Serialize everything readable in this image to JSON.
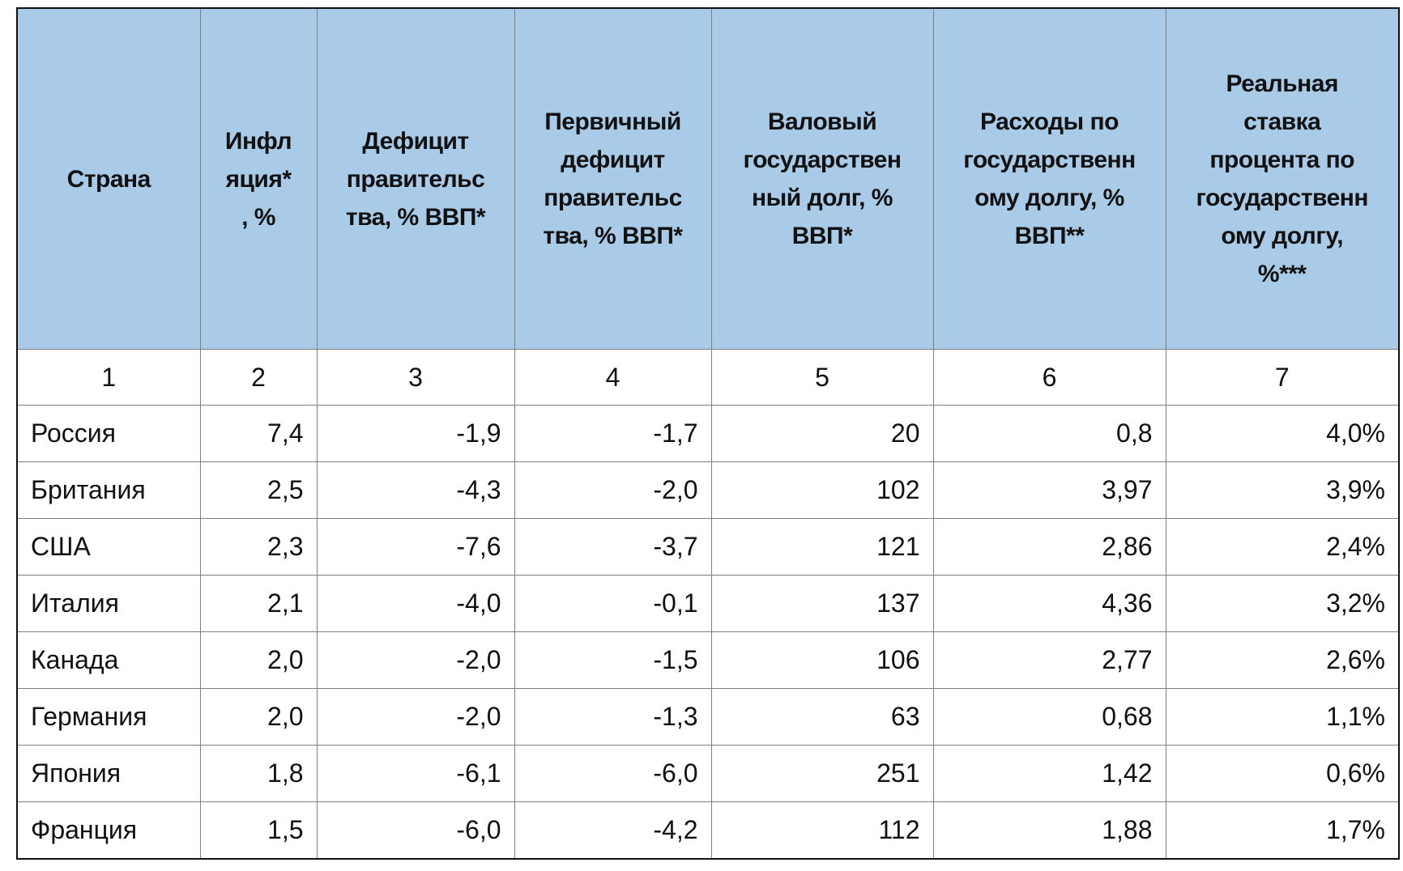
{
  "table": {
    "headers": [
      "Страна",
      "Инфл\nяция*\n, %",
      "Дефицит\nправительс\nтва, % ВВП*",
      "Первичный\nдефицит\nправительс\nтва, % ВВП*",
      "Валовый\nгосударствен\nный долг, %\nВВП*",
      "Расходы по\nгосударственн\nому долгу, %\nВВП**",
      "Реальная\nставка\nпроцента по\nгосударственн\nому долгу,\n%***"
    ],
    "column_numbers": [
      "1",
      "2",
      "3",
      "4",
      "5",
      "6",
      "7"
    ],
    "rows": [
      [
        "Россия",
        "7,4",
        "-1,9",
        "-1,7",
        "20",
        "0,8",
        "4,0%"
      ],
      [
        "Британия",
        "2,5",
        "-4,3",
        "-2,0",
        "102",
        "3,97",
        "3,9%"
      ],
      [
        "США",
        "2,3",
        "-7,6",
        "-3,7",
        "121",
        "2,86",
        "2,4%"
      ],
      [
        "Италия",
        "2,1",
        "-4,0",
        "-0,1",
        "137",
        "4,36",
        "3,2%"
      ],
      [
        "Канада",
        "2,0",
        "-2,0",
        "-1,5",
        "106",
        "2,77",
        "2,6%"
      ],
      [
        "Германия",
        "2,0",
        "-2,0",
        "-1,3",
        "63",
        "0,68",
        "1,1%"
      ],
      [
        "Япония",
        "1,8",
        "-6,1",
        "-6,0",
        "251",
        "1,42",
        "0,6%"
      ],
      [
        "Франция",
        "1,5",
        "-6,0",
        "-4,2",
        "112",
        "1,88",
        "1,7%"
      ]
    ]
  },
  "colors": {
    "header_bg": "#a9cbe8",
    "border": "#7f7f7f"
  }
}
